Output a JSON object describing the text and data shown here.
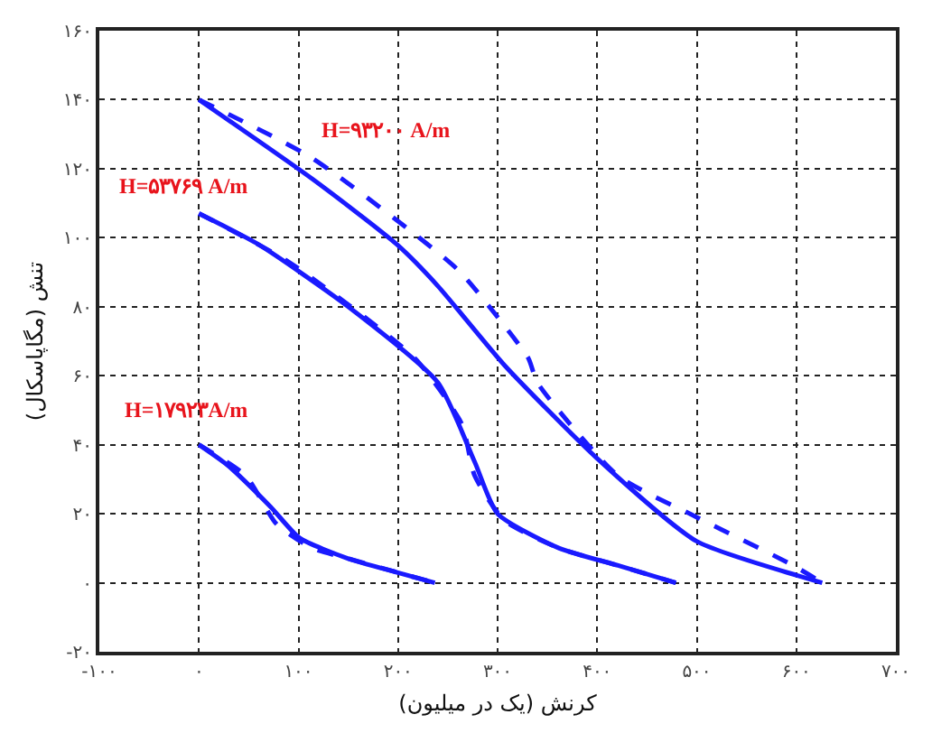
{
  "chart_data": {
    "type": "line",
    "xlabel": "کرنش (یک در میلیون)",
    "ylabel": "تنش (مگاپاسکال)",
    "xlim": [
      -100,
      700
    ],
    "ylim": [
      -20,
      160
    ],
    "xticks": [
      {
        "value": -100,
        "label": "-۱۰۰"
      },
      {
        "value": 0,
        "label": "۰"
      },
      {
        "value": 100,
        "label": "۱۰۰"
      },
      {
        "value": 200,
        "label": "۲۰۰"
      },
      {
        "value": 300,
        "label": "۳۰۰"
      },
      {
        "value": 400,
        "label": "۴۰۰"
      },
      {
        "value": 500,
        "label": "۵۰۰"
      },
      {
        "value": 600,
        "label": "۶۰۰"
      },
      {
        "value": 700,
        "label": "۷۰۰"
      }
    ],
    "yticks": [
      {
        "value": -20,
        "label": "-۲۰"
      },
      {
        "value": 0,
        "label": "۰"
      },
      {
        "value": 20,
        "label": "۲۰"
      },
      {
        "value": 40,
        "label": "۴۰"
      },
      {
        "value": 60,
        "label": "۶۰"
      },
      {
        "value": 80,
        "label": "۸۰"
      },
      {
        "value": 100,
        "label": "۱۰۰"
      },
      {
        "value": 120,
        "label": "۱۲۰"
      },
      {
        "value": 140,
        "label": "۱۴۰"
      },
      {
        "value": 160,
        "label": "۱۶۰"
      }
    ],
    "grid": true,
    "marker": "none",
    "series": [
      {
        "color": "#1a1aff",
        "line_style": "solid",
        "x": [
          0,
          114,
          199,
          240,
          307,
          400,
          500,
          602,
          626
        ],
        "values": [
          140,
          117,
          98,
          86,
          63,
          36,
          12,
          2,
          0
        ]
      },
      {
        "color": "#1a1aff",
        "line_style": "dashed",
        "x": [
          0,
          114,
          259,
          300,
          331,
          340,
          421,
          500,
          597,
          626
        ],
        "values": [
          140,
          123,
          91,
          77,
          65,
          58,
          31,
          19,
          5,
          0
        ]
      },
      {
        "color": "#1a1aff",
        "line_style": "solid",
        "x": [
          0,
          60,
          150,
          240,
          277,
          300,
          362,
          421,
          479
        ],
        "values": [
          107,
          98,
          80,
          58,
          35,
          20,
          10,
          5,
          0
        ]
      },
      {
        "color": "#1a1aff",
        "line_style": "dashed",
        "x": [
          0,
          90,
          217,
          264,
          277,
          307,
          362,
          421,
          479
        ],
        "values": [
          107,
          93,
          65,
          46,
          31,
          18,
          10,
          5,
          0
        ]
      },
      {
        "color": "#1a1aff",
        "line_style": "solid",
        "x": [
          0,
          29,
          72,
          101,
          150,
          199,
          237
        ],
        "values": [
          40,
          34,
          22,
          13,
          7,
          3,
          0
        ]
      },
      {
        "color": "#1a1aff",
        "line_style": "dashed",
        "x": [
          0,
          47,
          78,
          114,
          150,
          199,
          237
        ],
        "values": [
          40,
          31,
          17,
          10,
          7,
          3,
          0
        ]
      }
    ],
    "annotations": [
      "H=۹۳۲۰۰ A/m",
      "H=۵۳۷۶۹ A/m",
      "H=۱۷۹۲۳A/m"
    ]
  }
}
